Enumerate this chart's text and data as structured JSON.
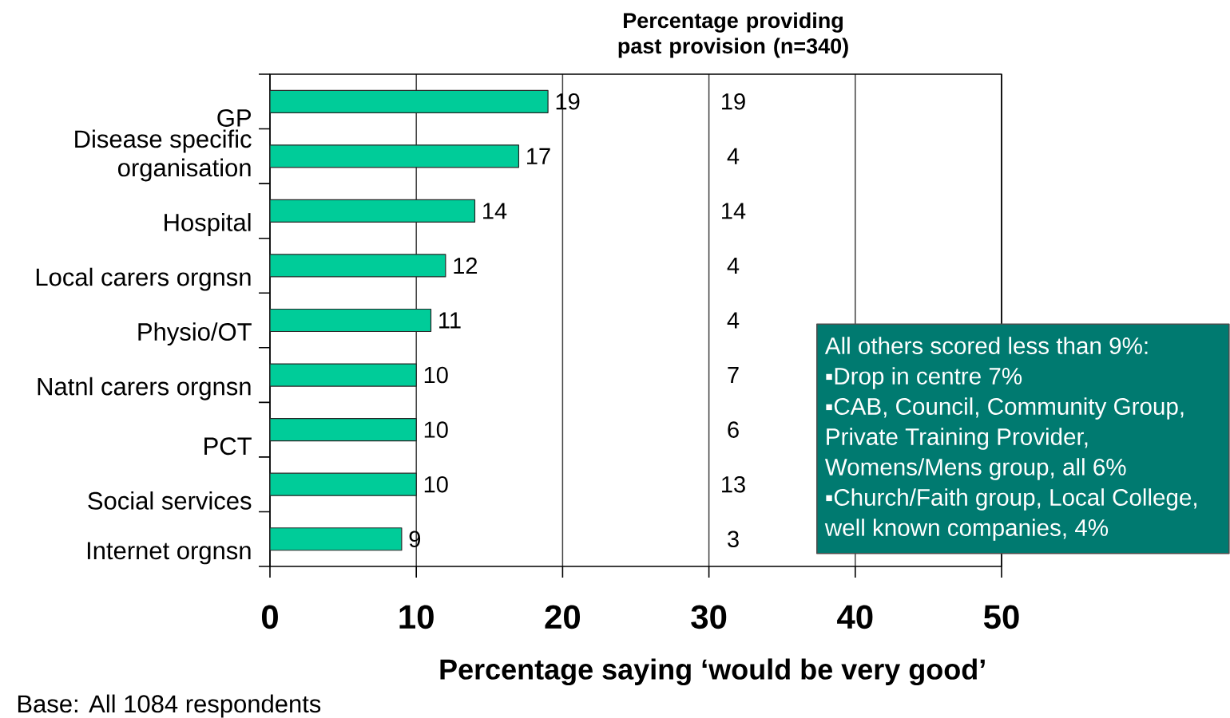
{
  "chart_data": [
    {
      "type": "bar",
      "orientation": "horizontal",
      "categories": [
        "GP",
        "Disease specific organisation",
        "Hospital",
        "Local carers orgnsn",
        "Physio/OT",
        "Natnl carers orgnsn",
        "PCT",
        "Social services",
        "Internet orgnsn"
      ],
      "values": [
        19,
        17,
        14,
        12,
        11,
        10,
        10,
        10,
        9
      ],
      "color": "#00cc99",
      "data_labels": true,
      "xlim": [
        0,
        50
      ],
      "xticks": [
        0,
        10,
        20,
        30,
        40,
        50
      ],
      "grid": "x",
      "xlabel": "Percentage saying ‘would be very good’",
      "annotations": [
        "All others scored less than 9%:",
        "▪Drop in centre 7%",
        "▪CAB, Council, Community Group, Private Training Provider, Womens/Mens group, all 6%",
        "▪Church/Faith group, Local College, well known companies, 4%",
        "Base: All 1084 respondents"
      ]
    },
    {
      "type": "other",
      "title": "Percentage providing past provision (n=340)",
      "categories": [
        null,
        null,
        null,
        null,
        null,
        null,
        null,
        null,
        null
      ],
      "values": [
        19,
        4,
        14,
        4,
        4,
        7,
        6,
        13,
        3
      ],
      "data_labels": true
    }
  ]
}
